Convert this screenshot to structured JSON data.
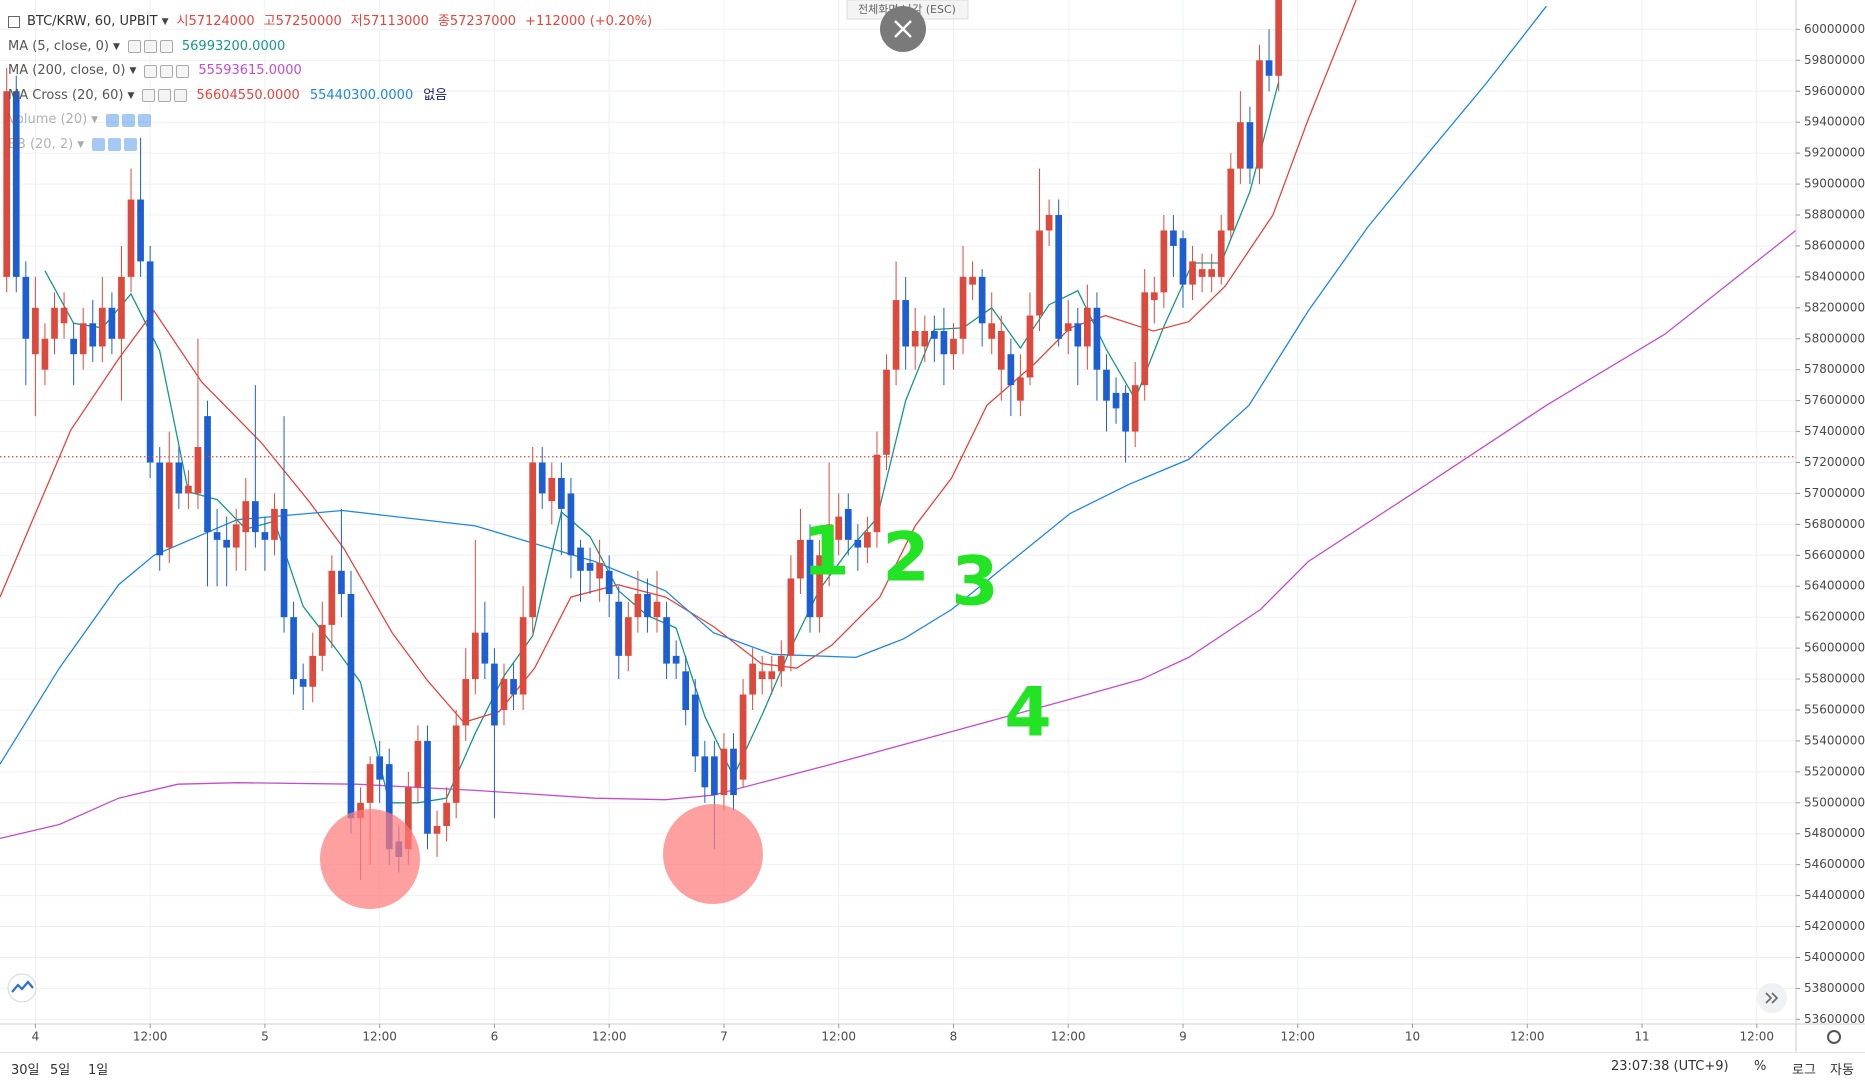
{
  "chart_data": {
    "type": "candlestick",
    "symbol": "BTC/KRW, 60, UPBIT",
    "ohlc_legend": [
      {
        "label": "시",
        "value": 57124000
      },
      {
        "label": "고",
        "value": 57250000
      },
      {
        "label": "저",
        "value": 57113000
      },
      {
        "label": "종",
        "value": 57237000
      }
    ],
    "change_label": "+112000 (+0.20%)",
    "indicators": [
      {
        "name": "MA (5, close, 0)",
        "readouts": [
          "56993200.0000"
        ],
        "readout_colors": [
          "#15988a"
        ]
      },
      {
        "name": "MA (200, close, 0)",
        "readouts": [
          "55593615.0000"
        ],
        "readout_colors": [
          "#c44ccf"
        ]
      },
      {
        "name": "MA Cross (20, 60)",
        "readouts": [
          "56604550.0000",
          "55440300.0000",
          "없음"
        ],
        "readout_colors": [
          "#e5453d",
          "#1e88e5",
          "#1a237e"
        ]
      },
      {
        "name": "Volume (20)",
        "readouts": [],
        "readout_colors": [],
        "hidden": true
      },
      {
        "name": "BB (20, 2)",
        "readouts": [],
        "readout_colors": [],
        "hidden": true
      }
    ],
    "up_color": "#dc4a3d",
    "down_color": "#1d5fd3",
    "price_line_color": "#e5453d",
    "grid": true,
    "xlim": [
      -3.7,
      184.1
    ],
    "ylim": [
      53570000,
      60190000
    ],
    "xticks": [
      {
        "value": 0,
        "label": "4"
      },
      {
        "value": 12,
        "label": "12:00"
      },
      {
        "value": 24,
        "label": "5"
      },
      {
        "value": 36,
        "label": "12:00"
      },
      {
        "value": 48,
        "label": "6"
      },
      {
        "value": 60,
        "label": "12:00"
      },
      {
        "value": 72,
        "label": "7"
      },
      {
        "value": 84,
        "label": "12:00"
      },
      {
        "value": 96,
        "label": "8"
      },
      {
        "value": 108,
        "label": "12:00"
      },
      {
        "value": 120,
        "label": "9"
      },
      {
        "value": 132,
        "label": "12:00"
      },
      {
        "value": 144,
        "label": "10"
      },
      {
        "value": 156,
        "label": "12:00"
      },
      {
        "value": 168,
        "label": "11"
      },
      {
        "value": 180,
        "label": "12:00"
      }
    ],
    "yticks": [
      53600000,
      53800000,
      54000000,
      54200000,
      54400000,
      54600000,
      54800000,
      55000000,
      55200000,
      55400000,
      55600000,
      55800000,
      56000000,
      56200000,
      56400000,
      56600000,
      56800000,
      57000000,
      57200000,
      57400000,
      57600000,
      57800000,
      58000000,
      58200000,
      58400000,
      58600000,
      58800000,
      59000000,
      59200000,
      59400000,
      59600000,
      59800000,
      60000000
    ],
    "x": [
      -3,
      -2,
      -1,
      0,
      1,
      2,
      3,
      4,
      5,
      6,
      7,
      8,
      9,
      10,
      11,
      12,
      13,
      14,
      15,
      16,
      17,
      18,
      19,
      20,
      21,
      22,
      23,
      24,
      25,
      26,
      27,
      28,
      29,
      30,
      31,
      32,
      33,
      34,
      35,
      36,
      37,
      38,
      39,
      40,
      41,
      42,
      43,
      44,
      45,
      46,
      47,
      48,
      49,
      50,
      51,
      52,
      53,
      54,
      55,
      56,
      57,
      58,
      59,
      60,
      61,
      62,
      63,
      64,
      65,
      66,
      67,
      68,
      69,
      70,
      71,
      72,
      73,
      74,
      75,
      76,
      77,
      78,
      79,
      80,
      81,
      82,
      83,
      84,
      85,
      86,
      87,
      88,
      89,
      90,
      91,
      92,
      93,
      94,
      95,
      96,
      97,
      98,
      99,
      100,
      101,
      102,
      103,
      104,
      105,
      106,
      107,
      108,
      109,
      110,
      111,
      112,
      113,
      114,
      115,
      116,
      117,
      118,
      119,
      120,
      121,
      122,
      123,
      124,
      125,
      126,
      127,
      128,
      129,
      130
    ],
    "open": [
      58400000,
      59600000,
      58400000,
      57900000,
      57800000,
      58000000,
      58100000,
      58000000,
      57900000,
      58100000,
      57950000,
      58200000,
      58000000,
      58400000,
      58900000,
      58500000,
      57200000,
      56650000,
      57200000,
      57000000,
      57000000,
      57500000,
      56750000,
      56700000,
      56650000,
      56750000,
      56950000,
      56750000,
      56700000,
      56900000,
      56200000,
      55800000,
      55750000,
      55950000,
      56150000,
      56500000,
      56350000,
      54900000,
      55000000,
      55300000,
      55250000,
      54750000,
      54700000,
      55100000,
      55400000,
      54800000,
      54850000,
      55000000,
      55500000,
      55800000,
      56100000,
      55900000,
      55600000,
      55800000,
      55700000,
      56200000,
      57200000,
      56950000,
      57100000,
      57000000,
      56650000,
      56550000,
      56450000,
      56500000,
      56300000,
      55950000,
      56200000,
      56350000,
      56200000,
      56200000,
      55950000,
      55850000,
      55700000,
      55300000,
      55300000,
      55050000,
      55350000,
      55150000,
      55700000,
      55800000,
      55800000,
      55850000,
      55950000,
      56450000,
      56700000,
      56200000,
      56500000,
      56700000,
      56900000,
      56700000,
      56650000,
      56750000,
      57250000,
      57800000,
      58250000,
      57950000,
      57950000,
      58050000,
      58050000,
      57900000,
      58000000,
      58350000,
      58400000,
      58000000,
      57800000,
      57900000,
      57600000,
      57750000,
      58150000,
      58700000,
      58800000,
      58050000,
      58100000,
      57950000,
      58200000,
      57800000,
      57650000,
      57650000,
      57400000,
      57700000,
      58250000,
      58300000,
      58700000,
      58650000,
      58350000,
      58400000,
      58400000,
      58400000,
      58700000,
      59100000,
      59400000,
      59100000,
      59800000,
      59700000
    ],
    "high": [
      59750000,
      59700000,
      58500000,
      58400000,
      58100000,
      58300000,
      58300000,
      58100000,
      58200000,
      58250000,
      58400000,
      58300000,
      58600000,
      59100000,
      59300000,
      58600000,
      57300000,
      57400000,
      57300000,
      57150000,
      58000000,
      57600000,
      56900000,
      56850000,
      56900000,
      57100000,
      57700000,
      56850000,
      57000000,
      57500000,
      56300000,
      55900000,
      56100000,
      56300000,
      56600000,
      56900000,
      56500000,
      55100000,
      55300000,
      55400000,
      55350000,
      54850000,
      55200000,
      55500000,
      55500000,
      54950000,
      55100000,
      55600000,
      56000000,
      56700000,
      56300000,
      56000000,
      55900000,
      55900000,
      56400000,
      57300000,
      57300000,
      57200000,
      57200000,
      57100000,
      56700000,
      56650000,
      56700000,
      56600000,
      56400000,
      56300000,
      56500000,
      56450000,
      56500000,
      56300000,
      56050000,
      55950000,
      55800000,
      55400000,
      55400000,
      55450000,
      55450000,
      55800000,
      56000000,
      55950000,
      55950000,
      56050000,
      56600000,
      56900000,
      56800000,
      56700000,
      57200000,
      57000000,
      57000000,
      56800000,
      56850000,
      57400000,
      57900000,
      58500000,
      58400000,
      58200000,
      58150000,
      58150000,
      58200000,
      58100000,
      58600000,
      58500000,
      58450000,
      58300000,
      58150000,
      58000000,
      57900000,
      58300000,
      59100000,
      58900000,
      58900000,
      58250000,
      58200000,
      58350000,
      58300000,
      57900000,
      57750000,
      57700000,
      57850000,
      58450000,
      58400000,
      58800000,
      58800000,
      58700000,
      58600000,
      58550000,
      58550000,
      58800000,
      59200000,
      59600000,
      59500000,
      59900000,
      60000000,
      60400000
    ],
    "low": [
      58300000,
      58300000,
      57700000,
      57500000,
      57700000,
      57900000,
      58000000,
      57700000,
      57800000,
      57850000,
      57850000,
      57900000,
      57600000,
      58300000,
      58400000,
      57100000,
      56500000,
      56550000,
      56900000,
      56900000,
      56900000,
      56400000,
      56400000,
      56400000,
      56500000,
      56500000,
      56650000,
      56500000,
      56600000,
      56100000,
      55700000,
      55600000,
      55650000,
      55850000,
      56000000,
      56200000,
      54800000,
      54500000,
      54600000,
      55000000,
      54600000,
      54550000,
      54600000,
      55000000,
      54700000,
      54650000,
      54750000,
      54900000,
      55400000,
      55700000,
      55800000,
      54900000,
      55500000,
      55600000,
      55600000,
      56100000,
      56900000,
      56800000,
      56600000,
      56450000,
      56300000,
      56350000,
      56300000,
      56200000,
      55800000,
      55850000,
      56100000,
      56100000,
      56100000,
      55800000,
      55800000,
      55500000,
      55200000,
      55000000,
      54700000,
      54950000,
      54950000,
      55100000,
      55600000,
      55700000,
      55700000,
      55750000,
      55850000,
      56350000,
      56100000,
      56100000,
      56400000,
      56600000,
      56600000,
      56500000,
      56550000,
      56650000,
      57150000,
      57700000,
      57800000,
      57800000,
      57850000,
      57850000,
      57700000,
      57800000,
      57900000,
      58250000,
      57950000,
      57900000,
      57600000,
      57500000,
      57500000,
      57700000,
      58050000,
      58600000,
      57950000,
      57900000,
      57700000,
      57800000,
      57600000,
      57400000,
      57450000,
      57200000,
      57300000,
      57600000,
      58100000,
      58200000,
      58400000,
      58200000,
      58250000,
      58300000,
      58300000,
      58350000,
      58650000,
      59000000,
      59000000,
      59000000,
      59600000,
      59600000
    ],
    "close": [
      59600000,
      58400000,
      58000000,
      58200000,
      58000000,
      58200000,
      58200000,
      57900000,
      58100000,
      57950000,
      58200000,
      58000000,
      58400000,
      58900000,
      58500000,
      57200000,
      56600000,
      57200000,
      57000000,
      57050000,
      57300000,
      56750000,
      56700000,
      56650000,
      56800000,
      56950000,
      56750000,
      56700000,
      56900000,
      56200000,
      55800000,
      55750000,
      55950000,
      56150000,
      56500000,
      56350000,
      54900000,
      55000000,
      55250000,
      55150000,
      54700000,
      54650000,
      55100000,
      55400000,
      54800000,
      54850000,
      55000000,
      55500000,
      55800000,
      56100000,
      55900000,
      55500000,
      55800000,
      55700000,
      56200000,
      57200000,
      57000000,
      57100000,
      56900000,
      56600000,
      56500000,
      56500000,
      56550000,
      56350000,
      55950000,
      56200000,
      56350000,
      56200000,
      56300000,
      55900000,
      55900000,
      55600000,
      55300000,
      55100000,
      55050000,
      55350000,
      55050000,
      55700000,
      55900000,
      55850000,
      55850000,
      55950000,
      56450000,
      56700000,
      56200000,
      56600000,
      56800000,
      56850000,
      56700000,
      56650000,
      56750000,
      57250000,
      57800000,
      58250000,
      57950000,
      58050000,
      58050000,
      58000000,
      57900000,
      58000000,
      58400000,
      58400000,
      58100000,
      58100000,
      58050000,
      57700000,
      57750000,
      58150000,
      58700000,
      58800000,
      58000000,
      58100000,
      57950000,
      58200000,
      57800000,
      57600000,
      57550000,
      57400000,
      57700000,
      58300000,
      58300000,
      58700000,
      58600000,
      58350000,
      58500000,
      58450000,
      58450000,
      58700000,
      59100000,
      59400000,
      59100000,
      59800000,
      59700000,
      60300000
    ],
    "series": [
      {
        "color": "#15988a",
        "x": [
          1,
          4,
          7,
          10,
          13,
          16,
          19,
          22,
          25,
          28,
          31,
          34,
          37,
          40,
          43,
          46,
          49,
          52,
          55,
          58,
          61,
          64,
          67,
          70,
          73,
          76,
          79,
          82,
          85,
          88,
          91,
          94,
          97,
          100,
          103,
          106,
          109,
          112,
          115,
          118,
          121,
          124,
          127,
          130
        ],
        "values": [
          58440000,
          58100000,
          58070000,
          58290000,
          57920000,
          57010000,
          56960000,
          56770000,
          56820000,
          56270000,
          56030000,
          55780000,
          55000000,
          55000000,
          55030000,
          55450000,
          55820000,
          56080000,
          56880000,
          56720000,
          56370000,
          56210000,
          56130000,
          55560000,
          55170000,
          55570000,
          56000000,
          56380000,
          56630000,
          56840000,
          57600000,
          58060000,
          58070000,
          58200000,
          57940000,
          58220000,
          58310000,
          57930000,
          57610000,
          58080000,
          58490000,
          58490000,
          58950000,
          59660000
        ]
      },
      {
        "color": "#c44ccf",
        "x": [
          -3.7,
          2.5,
          8.7,
          14.9,
          21.1,
          33.6,
          46,
          58.5,
          65.9,
          70.9,
          83.3,
          95.8,
          108.2,
          115.7,
          120.6,
          128.1,
          133.1,
          145.5,
          158,
          170.4,
          184.7
        ],
        "values": [
          54770000,
          54860000,
          55030000,
          55120000,
          55130000,
          55120000,
          55080000,
          55030000,
          55020000,
          55050000,
          55250000,
          55460000,
          55670000,
          55800000,
          55940000,
          56250000,
          56560000,
          57060000,
          57570000,
          58030000,
          58730000
        ]
      },
      {
        "color": "#e5453d",
        "x": [
          -3.7,
          0,
          3.7,
          8.7,
          12.4,
          17.4,
          23.6,
          28.6,
          32.3,
          37.3,
          41,
          44.8,
          48.5,
          52.2,
          56,
          60.9,
          65.9,
          70.9,
          75.9,
          79.6,
          83.3,
          88.3,
          92,
          95.8,
          99.5,
          104.5,
          108.2,
          111.9,
          116.9,
          120.6,
          124.4,
          129.4,
          133.1,
          138.1
        ],
        "values": [
          56330000,
          56870000,
          57410000,
          57870000,
          58180000,
          57720000,
          57330000,
          56950000,
          56640000,
          56100000,
          55790000,
          55520000,
          55590000,
          55870000,
          56330000,
          56410000,
          56330000,
          56140000,
          55900000,
          55870000,
          56020000,
          56330000,
          56790000,
          57100000,
          57570000,
          57840000,
          58070000,
          58150000,
          58050000,
          58110000,
          58340000,
          58800000,
          59420000,
          60190000
        ]
      },
      {
        "color": "#1e88e5",
        "x": [
          -3.7,
          2.5,
          8.7,
          12.4,
          21.1,
          32.1,
          46,
          58.5,
          65.9,
          70.9,
          77.1,
          85.8,
          90.8,
          95.8,
          102,
          108.2,
          114.4,
          120.6,
          126.9,
          133.1,
          139.3,
          145.5,
          151.7,
          158
        ],
        "values": [
          55250000,
          55870000,
          56410000,
          56600000,
          56830000,
          56890000,
          56790000,
          56560000,
          56370000,
          56100000,
          55960000,
          55940000,
          56060000,
          56250000,
          56560000,
          56870000,
          57060000,
          57220000,
          57570000,
          58180000,
          58720000,
          59190000,
          59650000,
          60150000
        ]
      }
    ],
    "annotations": [
      "1",
      "2",
      "3",
      "4"
    ]
  },
  "ui": {
    "tooltip": "전체화면 나감 (ESC)",
    "ranges": [
      "30일",
      "5일",
      "1일"
    ],
    "clock": "23:07:38 (UTC+9)",
    "scale_buttons": [
      "%",
      "로그",
      "자동"
    ]
  }
}
